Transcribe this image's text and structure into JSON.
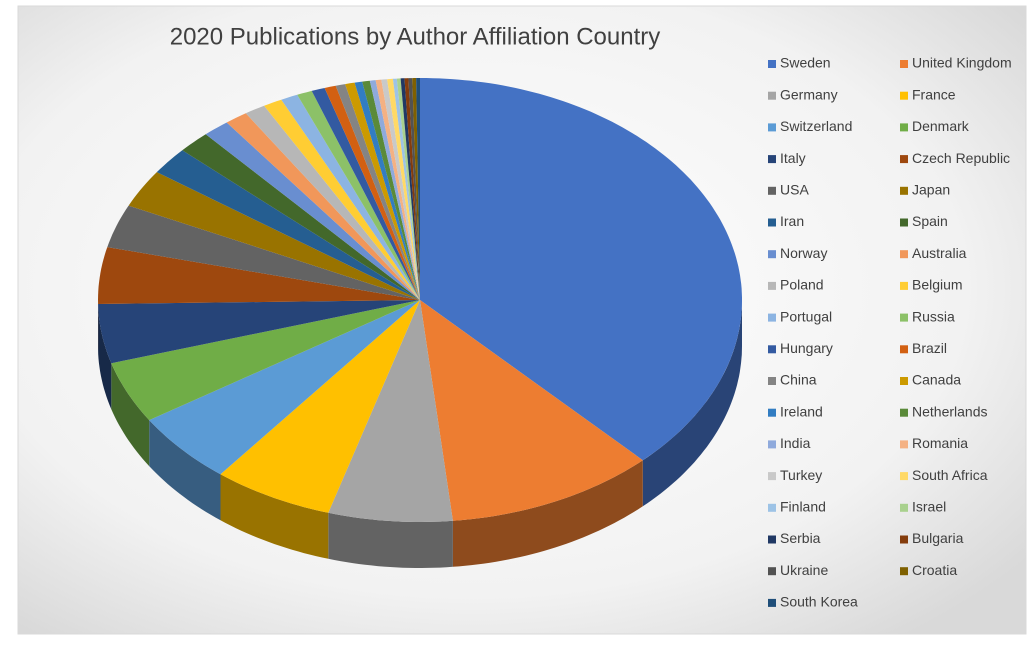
{
  "chart_data": {
    "type": "pie3d",
    "title": "2020 Publications by Author Affiliation Country",
    "categories": [
      "Sweden",
      "United Kingdom",
      "Germany",
      "France",
      "Switzerland",
      "Denmark",
      "Italy",
      "Czech Republic",
      "USA",
      "Japan",
      "Iran",
      "Spain",
      "Norway",
      "Australia",
      "Poland",
      "Belgium",
      "Portugal",
      "Russia",
      "Hungary",
      "Brazil",
      "China",
      "Canada",
      "Ireland",
      "Netherlands",
      "India",
      "Romania",
      "Turkey",
      "South Africa",
      "Finland",
      "Israel",
      "Serbia",
      "Bulgaria",
      "Ukraine",
      "Croatia",
      "South Korea"
    ],
    "values": [
      39.5,
      11,
      6.5,
      6.3,
      5.5,
      4.7,
      4.5,
      4.3,
      3.3,
      2.9,
      2.1,
      1.7,
      1.4,
      1.2,
      1.1,
      1.0,
      0.9,
      0.8,
      0.7,
      0.6,
      0.5,
      0.5,
      0.4,
      0.4,
      0.3,
      0.3,
      0.3,
      0.3,
      0.2,
      0.2,
      0.2,
      0.2,
      0.2,
      0.2,
      0.2
    ],
    "colors": [
      "#4472c4",
      "#ed7d31",
      "#a5a5a5",
      "#ffc000",
      "#5b9bd5",
      "#70ad47",
      "#264478",
      "#9e480e",
      "#636363",
      "#997300",
      "#255e91",
      "#43682b",
      "#698ed0",
      "#f1975a",
      "#b7b7b7",
      "#ffcd33",
      "#8cb4e2",
      "#8cc168",
      "#335aa1",
      "#d26012",
      "#848484",
      "#cc9a00",
      "#327dc2",
      "#5a8a39",
      "#8faadc",
      "#f4b183",
      "#c9c9c9",
      "#ffd966",
      "#9dc3e6",
      "#a9d18e",
      "#203864",
      "#843c0c",
      "#525252",
      "#7f6000",
      "#1f4e79"
    ],
    "legend": "right"
  }
}
